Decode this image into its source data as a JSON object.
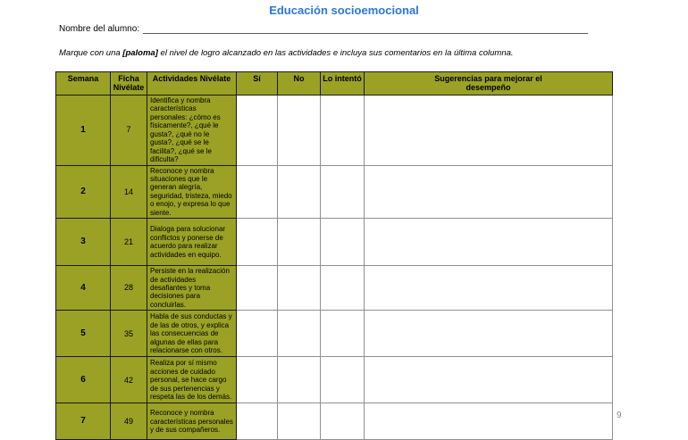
{
  "title": "Educación socioemocional",
  "name_field": {
    "label": "Nombre del alumno:",
    "value": ""
  },
  "instruction": {
    "prefix": "Marque con una ",
    "highlight": "[paloma]",
    "suffix": " el nivel de logro alcanzado en las actividades e incluya sus comentarios en la última columna."
  },
  "page_number": "9",
  "colors": {
    "title_blue": "#2b76e0",
    "header_olive": "#9aa125",
    "grid_dark": "#1a1a1a",
    "grid_light": "#909090"
  },
  "table": {
    "headers": [
      "Semana",
      "Ficha Nivélate",
      "Actividades Nivélate",
      "Sí",
      "No",
      "Lo intentó",
      "Sugerencias para mejorar el desempeño"
    ],
    "rows": [
      {
        "semana": "1",
        "ficha": "7",
        "actividad": "Identifica y nombra características personales: ¿cómo es físicamente?, ¿qué le gusta?, ¿qué no le gusta?, ¿qué se le facilita?, ¿qué se le dificulta?",
        "si": "",
        "no": "",
        "lo_intento": "",
        "sugerencias": ""
      },
      {
        "semana": "2",
        "ficha": "14",
        "actividad": "Reconoce y nombra situaciones que le generan alegría, seguridad, tristeza, miedo o enojo, y expresa lo que siente.",
        "si": "",
        "no": "",
        "lo_intento": "",
        "sugerencias": ""
      },
      {
        "semana": "3",
        "ficha": "21",
        "actividad": "Dialoga para solucionar conflictos y ponerse de acuerdo para realizar actividades en equipo.",
        "si": "",
        "no": "",
        "lo_intento": "",
        "sugerencias": ""
      },
      {
        "semana": "4",
        "ficha": "28",
        "actividad": "Persiste en la realización de actividades desafiantes y toma decisiones para concluirlas.",
        "si": "",
        "no": "",
        "lo_intento": "",
        "sugerencias": ""
      },
      {
        "semana": "5",
        "ficha": "35",
        "actividad": "Habla de sus conductas y de las de otros, y explica las consecuencias de algunas de ellas para relacionarse con otros.",
        "si": "",
        "no": "",
        "lo_intento": "",
        "sugerencias": ""
      },
      {
        "semana": "6",
        "ficha": "42",
        "actividad": "Realiza por sí mismo acciones de cuidado personal, se hace cargo de sus pertenencias y respeta las de los demás.",
        "si": "",
        "no": "",
        "lo_intento": "",
        "sugerencias": ""
      },
      {
        "semana": "7",
        "ficha": "49",
        "actividad": "Reconoce y nombra características personales y de sus compañeros.",
        "si": "",
        "no": "",
        "lo_intento": "",
        "sugerencias": ""
      }
    ]
  }
}
